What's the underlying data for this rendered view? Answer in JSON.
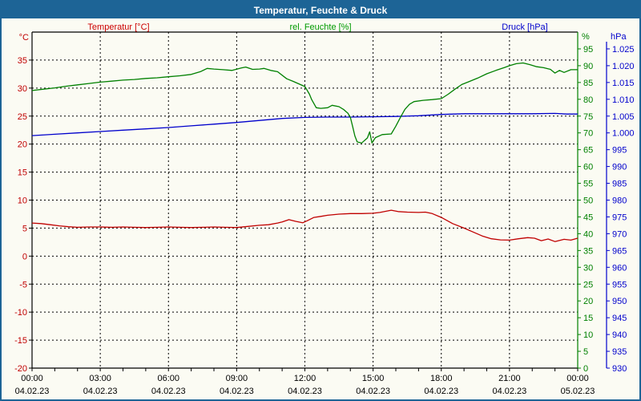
{
  "window": {
    "title": "Temperatur, Feuchte & Druck"
  },
  "legend": {
    "temperature": {
      "label": "Temperatur [°C]",
      "color": "#cc0000"
    },
    "humidity": {
      "label": "rel. Feuchte [%]",
      "color": "#009a00"
    },
    "pressure": {
      "label": "Druck [hPa]",
      "color": "#0000cc"
    }
  },
  "axes": {
    "temperature": {
      "unit": "°C",
      "min": -20,
      "max": 40,
      "color": "#c00000",
      "ticks": [
        35,
        30,
        25,
        20,
        15,
        10,
        5,
        0,
        -5,
        -10,
        -15,
        -20
      ]
    },
    "humidity": {
      "unit": "%",
      "min": 0,
      "max": 100,
      "color": "#008000",
      "ticks": [
        95,
        90,
        85,
        80,
        75,
        70,
        65,
        60,
        55,
        50,
        45,
        40,
        35,
        30,
        25,
        20,
        15,
        10,
        5,
        0
      ]
    },
    "pressure": {
      "unit": "hPa",
      "min": 930,
      "max": 1030,
      "color": "#0000cc",
      "ticks": [
        {
          "value": 1025,
          "label": "1.025"
        },
        {
          "value": 1020,
          "label": "1.020"
        },
        {
          "value": 1015,
          "label": "1.015"
        },
        {
          "value": 1010,
          "label": "1.010"
        },
        {
          "value": 1005,
          "label": "1.005"
        },
        {
          "value": 1000,
          "label": "1.000"
        },
        {
          "value": 995,
          "label": "995"
        },
        {
          "value": 990,
          "label": "990"
        },
        {
          "value": 985,
          "label": "985"
        },
        {
          "value": 980,
          "label": "980"
        },
        {
          "value": 975,
          "label": "975"
        },
        {
          "value": 970,
          "label": "970"
        },
        {
          "value": 965,
          "label": "965"
        },
        {
          "value": 960,
          "label": "960"
        },
        {
          "value": 955,
          "label": "955"
        },
        {
          "value": 950,
          "label": "950"
        },
        {
          "value": 945,
          "label": "945"
        },
        {
          "value": 940,
          "label": "940"
        },
        {
          "value": 935,
          "label": "935"
        },
        {
          "value": 930,
          "label": "930"
        }
      ]
    },
    "time": {
      "hours_min": 0,
      "hours_max": 24,
      "major_step_h": 3,
      "minor_step_h": 1,
      "labels": [
        {
          "time": "00:00",
          "date": "04.02.23"
        },
        {
          "time": "03:00",
          "date": "04.02.23"
        },
        {
          "time": "06:00",
          "date": "04.02.23"
        },
        {
          "time": "09:00",
          "date": "04.02.23"
        },
        {
          "time": "12:00",
          "date": "04.02.23"
        },
        {
          "time": "15:00",
          "date": "04.02.23"
        },
        {
          "time": "18:00",
          "date": "04.02.23"
        },
        {
          "time": "21:00",
          "date": "04.02.23"
        },
        {
          "time": "00:00",
          "date": "05.02.23"
        }
      ]
    }
  },
  "chart_data": {
    "type": "line",
    "title": "Temperatur, Feuchte & Druck",
    "x_unit": "hours",
    "series": [
      {
        "name": "Temperatur",
        "unit": "°C",
        "axis": "temperature",
        "color": "#c00000",
        "points": [
          [
            0,
            5.9
          ],
          [
            0.4,
            5.8
          ],
          [
            0.8,
            5.6
          ],
          [
            1.2,
            5.4
          ],
          [
            1.6,
            5.25
          ],
          [
            2,
            5.15
          ],
          [
            2.5,
            5.2
          ],
          [
            3,
            5.2
          ],
          [
            3.5,
            5.15
          ],
          [
            4,
            5.2
          ],
          [
            4.5,
            5.15
          ],
          [
            5,
            5.1
          ],
          [
            5.5,
            5.15
          ],
          [
            6,
            5.2
          ],
          [
            6.5,
            5.15
          ],
          [
            7,
            5.1
          ],
          [
            7.5,
            5.15
          ],
          [
            8,
            5.2
          ],
          [
            8.5,
            5.15
          ],
          [
            9,
            5.1
          ],
          [
            9.5,
            5.3
          ],
          [
            10,
            5.5
          ],
          [
            10.4,
            5.6
          ],
          [
            10.8,
            5.9
          ],
          [
            11,
            6.1
          ],
          [
            11.3,
            6.5
          ],
          [
            11.6,
            6.2
          ],
          [
            11.9,
            5.95
          ],
          [
            12.1,
            6.3
          ],
          [
            12.4,
            6.9
          ],
          [
            12.7,
            7.1
          ],
          [
            13,
            7.3
          ],
          [
            13.5,
            7.5
          ],
          [
            14,
            7.6
          ],
          [
            14.5,
            7.6
          ],
          [
            15,
            7.65
          ],
          [
            15.3,
            7.8
          ],
          [
            15.8,
            8.2
          ],
          [
            16.1,
            7.95
          ],
          [
            16.5,
            7.85
          ],
          [
            17,
            7.8
          ],
          [
            17.3,
            7.85
          ],
          [
            17.6,
            7.6
          ],
          [
            18,
            6.9
          ],
          [
            18.5,
            5.8
          ],
          [
            19,
            5.0
          ],
          [
            19.4,
            4.3
          ],
          [
            19.8,
            3.6
          ],
          [
            20.2,
            3.1
          ],
          [
            20.6,
            2.9
          ],
          [
            21,
            2.85
          ],
          [
            21.4,
            3.1
          ],
          [
            21.8,
            3.3
          ],
          [
            22.1,
            3.2
          ],
          [
            22.4,
            2.75
          ],
          [
            22.7,
            3.05
          ],
          [
            23,
            2.6
          ],
          [
            23.4,
            3.0
          ],
          [
            23.7,
            2.85
          ],
          [
            24,
            3.2
          ]
        ]
      },
      {
        "name": "rel. Feuchte",
        "unit": "%",
        "axis": "humidity",
        "color": "#008000",
        "points": [
          [
            0,
            82.6
          ],
          [
            0.5,
            83.0
          ],
          [
            1,
            83.4
          ],
          [
            1.5,
            83.9
          ],
          [
            2,
            84.3
          ],
          [
            2.5,
            84.7
          ],
          [
            3,
            85.1
          ],
          [
            3.5,
            85.4
          ],
          [
            4,
            85.7
          ],
          [
            4.5,
            85.9
          ],
          [
            5,
            86.2
          ],
          [
            5.5,
            86.4
          ],
          [
            6,
            86.7
          ],
          [
            6.5,
            87.0
          ],
          [
            7,
            87.4
          ],
          [
            7.4,
            88.2
          ],
          [
            7.7,
            89.2
          ],
          [
            8,
            89.0
          ],
          [
            8.4,
            88.8
          ],
          [
            8.8,
            88.6
          ],
          [
            9.2,
            89.3
          ],
          [
            9.4,
            89.6
          ],
          [
            9.7,
            88.9
          ],
          [
            10,
            89.0
          ],
          [
            10.2,
            89.2
          ],
          [
            10.5,
            88.6
          ],
          [
            10.8,
            88.2
          ],
          [
            11.2,
            86.1
          ],
          [
            11.5,
            85.3
          ],
          [
            11.8,
            84.4
          ],
          [
            12,
            83.8
          ],
          [
            12.1,
            82.7
          ],
          [
            12.2,
            81.5
          ],
          [
            12.3,
            79.9
          ],
          [
            12.5,
            77.5
          ],
          [
            12.7,
            77.3
          ],
          [
            13,
            77.5
          ],
          [
            13.2,
            78.2
          ],
          [
            13.5,
            77.8
          ],
          [
            13.7,
            77.0
          ],
          [
            13.9,
            75.8
          ],
          [
            14,
            74.6
          ],
          [
            14.1,
            71.9
          ],
          [
            14.2,
            69.1
          ],
          [
            14.3,
            67.3
          ],
          [
            14.5,
            67.0
          ],
          [
            14.75,
            68.5
          ],
          [
            14.85,
            70.3
          ],
          [
            14.95,
            67.0
          ],
          [
            15.1,
            68.6
          ],
          [
            15.4,
            69.5
          ],
          [
            15.8,
            69.7
          ],
          [
            16,
            72.0
          ],
          [
            16.2,
            74.6
          ],
          [
            16.4,
            77.0
          ],
          [
            16.6,
            78.5
          ],
          [
            16.8,
            79.3
          ],
          [
            17.2,
            79.7
          ],
          [
            17.6,
            79.9
          ],
          [
            18,
            80.2
          ],
          [
            18.3,
            81.5
          ],
          [
            18.6,
            83.0
          ],
          [
            18.9,
            84.4
          ],
          [
            19.2,
            85.2
          ],
          [
            19.6,
            86.3
          ],
          [
            20,
            87.6
          ],
          [
            20.4,
            88.6
          ],
          [
            20.8,
            89.5
          ],
          [
            21,
            90.0
          ],
          [
            21.3,
            90.6
          ],
          [
            21.6,
            90.8
          ],
          [
            21.9,
            90.3
          ],
          [
            22.2,
            89.7
          ],
          [
            22.5,
            89.4
          ],
          [
            22.8,
            88.9
          ],
          [
            23,
            87.8
          ],
          [
            23.2,
            88.6
          ],
          [
            23.4,
            88.0
          ],
          [
            23.7,
            88.8
          ],
          [
            24,
            88.8
          ]
        ]
      },
      {
        "name": "Druck",
        "unit": "hPa",
        "axis": "pressure",
        "color": "#0000cc",
        "points": [
          [
            0,
            999.2
          ],
          [
            1,
            999.6
          ],
          [
            2,
            1000.0
          ],
          [
            3,
            1000.4
          ],
          [
            4,
            1000.8
          ],
          [
            5,
            1001.2
          ],
          [
            6,
            1001.6
          ],
          [
            7,
            1002.1
          ],
          [
            8,
            1002.6
          ],
          [
            9,
            1003.1
          ],
          [
            10,
            1003.7
          ],
          [
            11,
            1004.3
          ],
          [
            12,
            1004.6
          ],
          [
            13,
            1004.7
          ],
          [
            14,
            1004.7
          ],
          [
            15,
            1004.8
          ],
          [
            16,
            1004.9
          ],
          [
            17,
            1005.1
          ],
          [
            18,
            1005.5
          ],
          [
            19,
            1005.7
          ],
          [
            20,
            1005.7
          ],
          [
            21,
            1005.7
          ],
          [
            22,
            1005.7
          ],
          [
            23,
            1005.8
          ],
          [
            23.5,
            1005.6
          ],
          [
            24,
            1005.6
          ]
        ]
      }
    ]
  }
}
